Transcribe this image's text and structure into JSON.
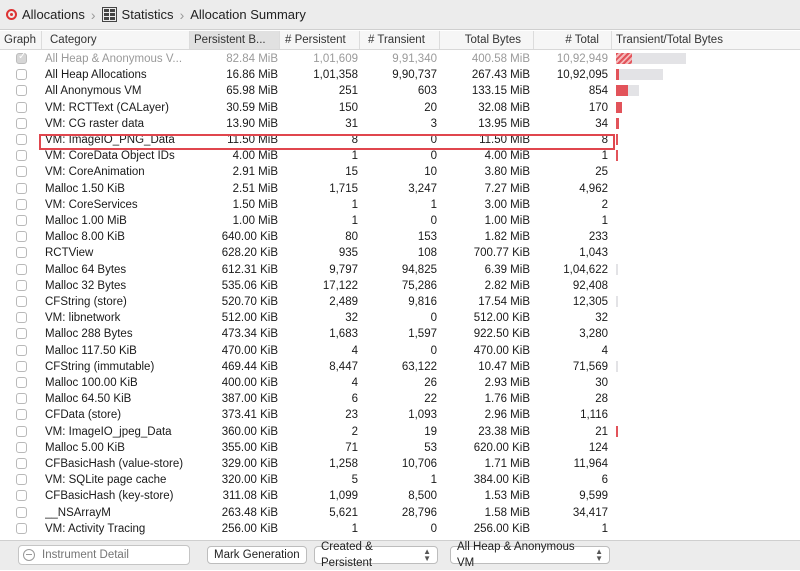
{
  "breadcrumb": {
    "items": [
      {
        "label": "Allocations",
        "icon": "allocations-icon"
      },
      {
        "label": "Statistics",
        "icon": "statistics-grid-icon"
      },
      {
        "label": "Allocation Summary",
        "icon": ""
      }
    ]
  },
  "columns": [
    "Graph",
    "Category",
    "Persistent B...",
    "# Persistent",
    "# Transient",
    "Total Bytes",
    "# Total",
    "Transient/Total Bytes"
  ],
  "sorted_column": "Persistent B...",
  "colors": {
    "bar_fill": "#e2535a",
    "bar_track": "#e3e3e6",
    "highlight": "#e0464e"
  },
  "highlighted_row": "VM: ImageIO_PNG_Data",
  "rows": [
    {
      "checked": true,
      "category": "All Heap & Anonymous V...",
      "persistent_bytes": "82.84 MiB",
      "persistent": "1,01,609",
      "transient": "9,91,340",
      "total_bytes": "400.58 MiB",
      "total": "10,92,949",
      "dim": true,
      "ratio": 0.7,
      "fill": 0.16
    },
    {
      "checked": false,
      "category": "All Heap Allocations",
      "persistent_bytes": "16.86 MiB",
      "persistent": "1,01,358",
      "transient": "9,90,737",
      "total_bytes": "267.43 MiB",
      "total": "10,92,095",
      "ratio": 0.47,
      "fill": 0.03
    },
    {
      "checked": false,
      "category": "All Anonymous VM",
      "persistent_bytes": "65.98 MiB",
      "persistent": "251",
      "transient": "603",
      "total_bytes": "133.15 MiB",
      "total": "854",
      "ratio": 0.23,
      "fill": 0.12
    },
    {
      "checked": false,
      "category": "VM: RCTText (CALayer)",
      "persistent_bytes": "30.59 MiB",
      "persistent": "150",
      "transient": "20",
      "total_bytes": "32.08 MiB",
      "total": "170",
      "ratio": 0.055,
      "fill": 0.055
    },
    {
      "checked": false,
      "category": "VM: CG raster data",
      "persistent_bytes": "13.90 MiB",
      "persistent": "31",
      "transient": "3",
      "total_bytes": "13.95 MiB",
      "total": "34",
      "ratio": 0.025,
      "fill": 0.025
    },
    {
      "checked": false,
      "category": "VM: ImageIO_PNG_Data",
      "persistent_bytes": "11.50 MiB",
      "persistent": "8",
      "transient": "0",
      "total_bytes": "11.50 MiB",
      "total": "8",
      "ratio": 0.02,
      "fill": 0.02
    },
    {
      "checked": false,
      "category": "VM: CoreData Object IDs",
      "persistent_bytes": "4.00 MiB",
      "persistent": "1",
      "transient": "0",
      "total_bytes": "4.00 MiB",
      "total": "1",
      "ratio": 0.008,
      "fill": 0.008
    },
    {
      "checked": false,
      "category": "VM: CoreAnimation",
      "persistent_bytes": "2.91 MiB",
      "persistent": "15",
      "transient": "10",
      "total_bytes": "3.80 MiB",
      "total": "25",
      "ratio": 0,
      "fill": 0
    },
    {
      "checked": false,
      "category": "Malloc 1.50 KiB",
      "persistent_bytes": "2.51 MiB",
      "persistent": "1,715",
      "transient": "3,247",
      "total_bytes": "7.27 MiB",
      "total": "4,962",
      "ratio": 0,
      "fill": 0
    },
    {
      "checked": false,
      "category": "VM: CoreServices",
      "persistent_bytes": "1.50 MiB",
      "persistent": "1",
      "transient": "1",
      "total_bytes": "3.00 MiB",
      "total": "2",
      "ratio": 0,
      "fill": 0
    },
    {
      "checked": false,
      "category": "Malloc 1.00 MiB",
      "persistent_bytes": "1.00 MiB",
      "persistent": "1",
      "transient": "0",
      "total_bytes": "1.00 MiB",
      "total": "1",
      "ratio": 0,
      "fill": 0
    },
    {
      "checked": false,
      "category": "Malloc 8.00 KiB",
      "persistent_bytes": "640.00 KiB",
      "persistent": "80",
      "transient": "153",
      "total_bytes": "1.82 MiB",
      "total": "233",
      "ratio": 0,
      "fill": 0
    },
    {
      "checked": false,
      "category": "RCTView",
      "persistent_bytes": "628.20 KiB",
      "persistent": "935",
      "transient": "108",
      "total_bytes": "700.77 KiB",
      "total": "1,043",
      "ratio": 0,
      "fill": 0
    },
    {
      "checked": false,
      "category": "Malloc 64 Bytes",
      "persistent_bytes": "612.31 KiB",
      "persistent": "9,797",
      "transient": "94,825",
      "total_bytes": "6.39 MiB",
      "total": "1,04,622",
      "ratio": 0.007,
      "fill": 0
    },
    {
      "checked": false,
      "category": "Malloc 32 Bytes",
      "persistent_bytes": "535.06 KiB",
      "persistent": "17,122",
      "transient": "75,286",
      "total_bytes": "2.82 MiB",
      "total": "92,408",
      "ratio": 0,
      "fill": 0
    },
    {
      "checked": false,
      "category": "CFString (store)",
      "persistent_bytes": "520.70 KiB",
      "persistent": "2,489",
      "transient": "9,816",
      "total_bytes": "17.54 MiB",
      "total": "12,305",
      "ratio": 0.007,
      "fill": 0
    },
    {
      "checked": false,
      "category": "VM: libnetwork",
      "persistent_bytes": "512.00 KiB",
      "persistent": "32",
      "transient": "0",
      "total_bytes": "512.00 KiB",
      "total": "32",
      "ratio": 0,
      "fill": 0
    },
    {
      "checked": false,
      "category": "Malloc 288 Bytes",
      "persistent_bytes": "473.34 KiB",
      "persistent": "1,683",
      "transient": "1,597",
      "total_bytes": "922.50 KiB",
      "total": "3,280",
      "ratio": 0,
      "fill": 0
    },
    {
      "checked": false,
      "category": "Malloc 117.50 KiB",
      "persistent_bytes": "470.00 KiB",
      "persistent": "4",
      "transient": "0",
      "total_bytes": "470.00 KiB",
      "total": "4",
      "ratio": 0,
      "fill": 0
    },
    {
      "checked": false,
      "category": "CFString (immutable)",
      "persistent_bytes": "469.44 KiB",
      "persistent": "8,447",
      "transient": "63,122",
      "total_bytes": "10.47 MiB",
      "total": "71,569",
      "ratio": 0.007,
      "fill": 0
    },
    {
      "checked": false,
      "category": "Malloc 100.00 KiB",
      "persistent_bytes": "400.00 KiB",
      "persistent": "4",
      "transient": "26",
      "total_bytes": "2.93 MiB",
      "total": "30",
      "ratio": 0,
      "fill": 0
    },
    {
      "checked": false,
      "category": "Malloc 64.50 KiB",
      "persistent_bytes": "387.00 KiB",
      "persistent": "6",
      "transient": "22",
      "total_bytes": "1.76 MiB",
      "total": "28",
      "ratio": 0,
      "fill": 0
    },
    {
      "checked": false,
      "category": "CFData (store)",
      "persistent_bytes": "373.41 KiB",
      "persistent": "23",
      "transient": "1,093",
      "total_bytes": "2.96 MiB",
      "total": "1,116",
      "ratio": 0,
      "fill": 0
    },
    {
      "checked": false,
      "category": "VM: ImageIO_jpeg_Data",
      "persistent_bytes": "360.00 KiB",
      "persistent": "2",
      "transient": "19",
      "total_bytes": "23.38 MiB",
      "total": "21",
      "ratio": 0.006,
      "fill": 0.002
    },
    {
      "checked": false,
      "category": "Malloc 5.00 KiB",
      "persistent_bytes": "355.00 KiB",
      "persistent": "71",
      "transient": "53",
      "total_bytes": "620.00 KiB",
      "total": "124",
      "ratio": 0,
      "fill": 0
    },
    {
      "checked": false,
      "category": "CFBasicHash (value-store)",
      "persistent_bytes": "329.00 KiB",
      "persistent": "1,258",
      "transient": "10,706",
      "total_bytes": "1.71 MiB",
      "total": "11,964",
      "ratio": 0,
      "fill": 0
    },
    {
      "checked": false,
      "category": "VM: SQLite page cache",
      "persistent_bytes": "320.00 KiB",
      "persistent": "5",
      "transient": "1",
      "total_bytes": "384.00 KiB",
      "total": "6",
      "ratio": 0,
      "fill": 0
    },
    {
      "checked": false,
      "category": "CFBasicHash (key-store)",
      "persistent_bytes": "311.08 KiB",
      "persistent": "1,099",
      "transient": "8,500",
      "total_bytes": "1.53 MiB",
      "total": "9,599",
      "ratio": 0,
      "fill": 0
    },
    {
      "checked": false,
      "category": "__NSArrayM",
      "persistent_bytes": "263.48 KiB",
      "persistent": "5,621",
      "transient": "28,796",
      "total_bytes": "1.58 MiB",
      "total": "34,417",
      "ratio": 0,
      "fill": 0
    },
    {
      "checked": false,
      "category": "VM: Activity Tracing",
      "persistent_bytes": "256.00 KiB",
      "persistent": "1",
      "transient": "0",
      "total_bytes": "256.00 KiB",
      "total": "1",
      "ratio": 0,
      "fill": 0
    }
  ],
  "footer": {
    "filter_placeholder": "Instrument Detail",
    "mark_generation_label": "Mark Generation",
    "lifespan_selected": "Created & Persistent",
    "allocation_type_selected": "All Heap & Anonymous VM"
  }
}
